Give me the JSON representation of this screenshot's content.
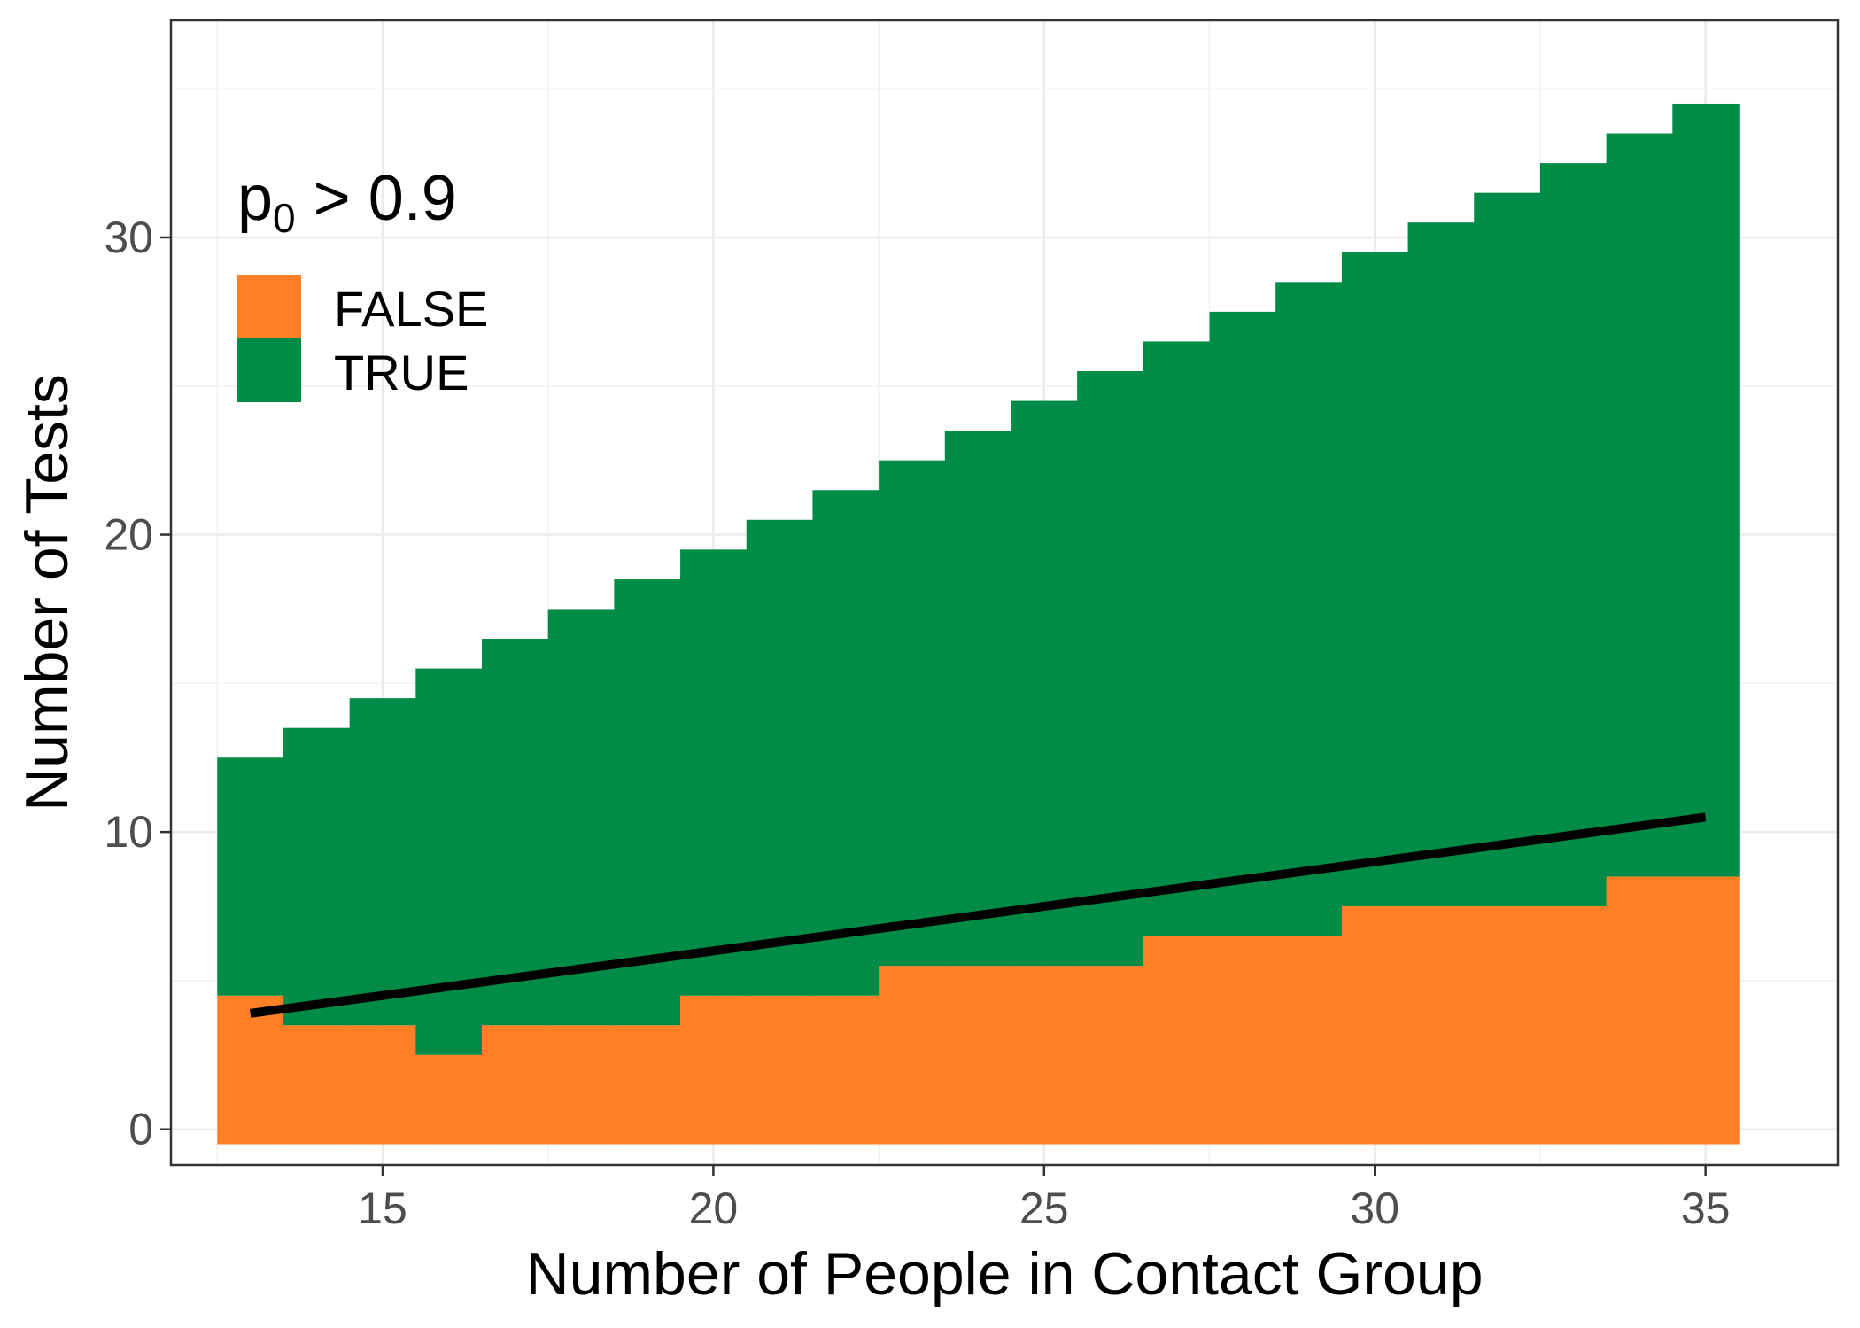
{
  "chart_data": {
    "type": "bar",
    "xlabel": "Number of People in Contact Group",
    "ylabel": "Number of Tests",
    "xlim": [
      11.8,
      37.0
    ],
    "ylim": [
      -1.2,
      37.3
    ],
    "x_ticks": [
      15,
      20,
      25,
      30,
      35
    ],
    "y_ticks": [
      0,
      10,
      20,
      30
    ],
    "x_tick_labels": [
      "15",
      "20",
      "25",
      "30",
      "35"
    ],
    "y_tick_labels": [
      "0",
      "10",
      "20",
      "30"
    ],
    "grid": true,
    "stacked": true,
    "categories": [
      13,
      14,
      15,
      16,
      17,
      18,
      19,
      20,
      21,
      22,
      23,
      24,
      25,
      26,
      27,
      28,
      29,
      30,
      31,
      32,
      33,
      34,
      35
    ],
    "series": [
      {
        "name": "FALSE",
        "color": "#ff7f27",
        "values": [
          5,
          4,
          4,
          3,
          4,
          4,
          4,
          5,
          5,
          5,
          6,
          6,
          6,
          6,
          7,
          7,
          7,
          8,
          8,
          8,
          8,
          9,
          9
        ]
      },
      {
        "name": "TRUE",
        "color": "#008c47",
        "values": [
          8,
          10,
          11,
          13,
          13,
          14,
          15,
          15,
          16,
          17,
          17,
          18,
          19,
          20,
          20,
          21,
          22,
          22,
          23,
          24,
          25,
          25,
          26
        ]
      }
    ],
    "totals": [
      13,
      14,
      15,
      16,
      17,
      18,
      19,
      20,
      21,
      22,
      23,
      24,
      25,
      26,
      27,
      28,
      29,
      30,
      31,
      32,
      33,
      34,
      35
    ],
    "trend_line": {
      "x": [
        13,
        35
      ],
      "y": [
        3.9,
        10.5
      ],
      "color": "#000000"
    },
    "legend": {
      "title_main": "p",
      "title_sub": "0",
      "title_rest": " > 0.9",
      "position": "top-left",
      "entries": [
        {
          "label": "FALSE",
          "color": "#ff7f27"
        },
        {
          "label": "TRUE",
          "color": "#008c47"
        }
      ]
    }
  }
}
